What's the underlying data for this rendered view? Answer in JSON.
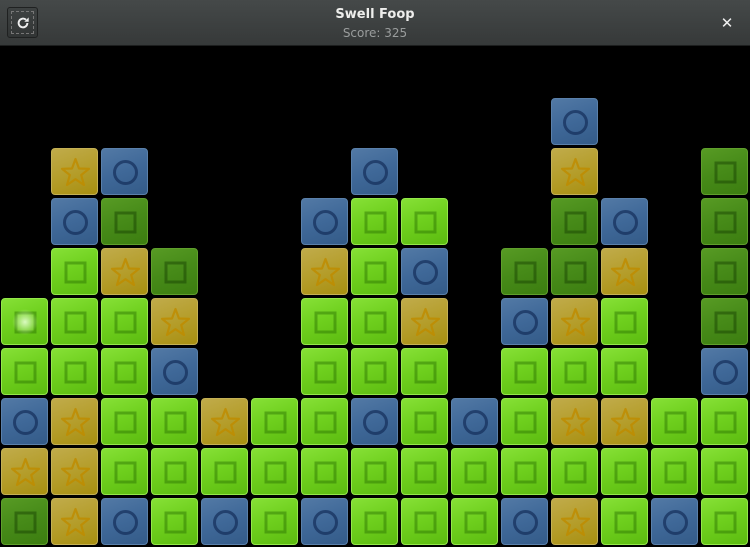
{
  "header": {
    "title": "Swell Foop",
    "score": "Score: 325",
    "refresh_icon": "refresh-icon",
    "close_icon": "close-icon",
    "close_glyph": "✕"
  },
  "board": {
    "columns": 15,
    "rows": 10,
    "legend": {
      "G": "green-square",
      "D": "dark-green-square",
      "B": "blue-circle",
      "Y": "yellow-star",
      ".": "empty"
    },
    "colors": {
      "G": "#6fd01e",
      "D": "#468a18",
      "B": "#3f6898",
      "Y": "#b59e2c"
    },
    "cursor": {
      "row": 5,
      "col": 0
    },
    "grid": [
      "...............",
      "...........B...",
      ".YB....B...Y..D",
      ".BD...BGG..DB.D",
      ".GYD..YGB.DDY.D",
      "GGGY..GGY.BYG.D",
      "GGGB..GGG.GGG.B",
      "BYGGYGGBGBGYYGG",
      "YYGGGGGGGGGGGGG",
      "DYBGBGBGGGBYGBG"
    ]
  }
}
